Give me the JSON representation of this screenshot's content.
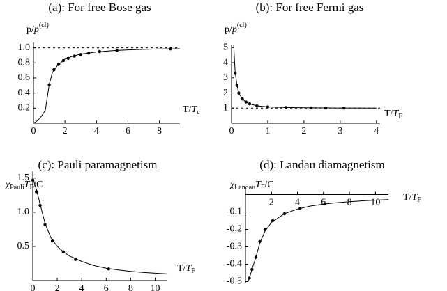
{
  "chart_data": [
    {
      "type": "line",
      "title": "(a): For free Bose gas",
      "y_label": [
        {
          "text": "p/"
        },
        {
          "text": "p",
          "style": "italic"
        },
        {
          "text": "(cl)",
          "style": "sup"
        }
      ],
      "x_label": [
        {
          "text": "T/"
        },
        {
          "text": "T",
          "style": "italic"
        },
        {
          "text": "c",
          "style": "sub"
        }
      ],
      "xlim": [
        0,
        9.3
      ],
      "ylim": [
        0,
        1.07
      ],
      "xticks": [
        0,
        2,
        4,
        6,
        8
      ],
      "yticks": [
        0.2,
        0.4,
        0.6,
        0.8,
        {
          "value": 1,
          "label": "1.0"
        }
      ],
      "ref_line": 1,
      "color": "#000000",
      "curve": {
        "x": [
          0,
          0.25,
          0.5,
          0.75,
          1,
          1.2,
          1.5,
          2,
          2.5,
          3,
          4,
          5,
          6,
          7,
          8,
          9.3
        ],
        "y": [
          0,
          0.032,
          0.09,
          0.167,
          0.514,
          0.67,
          0.76,
          0.85,
          0.89,
          0.915,
          0.945,
          0.962,
          0.972,
          0.979,
          0.984,
          0.988
        ]
      },
      "points": {
        "x": [
          1,
          1.3,
          1.6,
          1.9,
          2.2,
          2.6,
          3,
          3.5,
          4.2,
          5.3,
          8.7
        ],
        "y": [
          0.51,
          0.71,
          0.78,
          0.83,
          0.86,
          0.89,
          0.91,
          0.93,
          0.95,
          0.965,
          0.985
        ]
      }
    },
    {
      "type": "line",
      "title": "(b): For free Fermi gas",
      "y_label": [
        {
          "text": "p/"
        },
        {
          "text": "p",
          "style": "italic"
        },
        {
          "text": "(cl)",
          "style": "sup"
        }
      ],
      "x_label": [
        {
          "text": "T/"
        },
        {
          "text": "T",
          "style": "italic"
        },
        {
          "text": "F",
          "style": "sub"
        }
      ],
      "xlim": [
        0,
        4.1
      ],
      "ylim": [
        0,
        5.2
      ],
      "xticks": [
        0,
        1,
        2,
        3,
        4
      ],
      "yticks": [
        1,
        2,
        3,
        4,
        5
      ],
      "ref_line": 1,
      "color": "#000000",
      "curve": {
        "x": [
          0.06,
          0.08,
          0.1,
          0.15,
          0.2,
          0.3,
          0.4,
          0.5,
          0.7,
          1,
          1.5,
          2,
          3,
          4
        ],
        "y": [
          5.2,
          4.2,
          3.4,
          2.5,
          2.0,
          1.6,
          1.4,
          1.28,
          1.15,
          1.08,
          1.04,
          1.02,
          1.01,
          1.005
        ]
      },
      "points": {
        "x": [
          0.1,
          0.15,
          0.2,
          0.3,
          0.4,
          0.5,
          0.7,
          1,
          1.5,
          2.2,
          2.6,
          3.1
        ],
        "y": [
          3.3,
          2.5,
          2.0,
          1.6,
          1.4,
          1.28,
          1.15,
          1.08,
          1.03,
          1.015,
          1.01,
          1.005
        ]
      }
    },
    {
      "type": "line",
      "title": "(c): Pauli paramagnetism",
      "y_label": [
        {
          "text": "χ",
          "style": "italic"
        },
        {
          "text": "Pauli",
          "style": "sub"
        },
        {
          "text": "T",
          "style": "italic"
        },
        {
          "text": "F",
          "style": "sub"
        },
        {
          "text": "/C"
        }
      ],
      "x_label": [
        {
          "text": "T/"
        },
        {
          "text": "T",
          "style": "italic"
        },
        {
          "text": "F",
          "style": "sub"
        }
      ],
      "xlim": [
        0,
        11
      ],
      "ylim": [
        0,
        1.6
      ],
      "xticks": [
        0,
        2,
        4,
        6,
        8,
        10
      ],
      "yticks": [
        0.5,
        {
          "value": 1,
          "label": "1.0"
        },
        1.5
      ],
      "color": "#000000",
      "curve": {
        "x": [
          0,
          0.3,
          0.6,
          1,
          1.5,
          2,
          2.5,
          3,
          4,
          5,
          6,
          7,
          8,
          9,
          10,
          11
        ],
        "y": [
          1.5,
          1.33,
          1.12,
          0.84,
          0.62,
          0.5,
          0.42,
          0.36,
          0.28,
          0.22,
          0.18,
          0.155,
          0.135,
          0.12,
          0.108,
          0.098
        ]
      },
      "points": {
        "x": [
          0,
          0.3,
          0.6,
          1,
          1.6,
          2.5,
          3.5,
          6.2
        ],
        "y": [
          1.47,
          1.3,
          1.1,
          0.82,
          0.58,
          0.42,
          0.31,
          0.17
        ]
      }
    },
    {
      "type": "line",
      "title": "(d): Landau diamagnetism",
      "y_label": [
        {
          "text": "χ",
          "style": "italic"
        },
        {
          "text": "Landau",
          "style": "sub"
        },
        {
          "text": "T",
          "style": "italic"
        },
        {
          "text": "F",
          "style": "sub"
        },
        {
          "text": "/C"
        }
      ],
      "x_label": [
        {
          "text": "T/"
        },
        {
          "text": "T",
          "style": "italic"
        },
        {
          "text": "F",
          "style": "sub"
        }
      ],
      "xlim": [
        0,
        11
      ],
      "ylim": [
        -0.51,
        0.03
      ],
      "xticks": [
        2,
        4,
        6,
        8,
        10
      ],
      "yticks": [
        -0.5,
        -0.4,
        -0.3,
        -0.2,
        -0.1
      ],
      "color": "#000000",
      "curve": {
        "x": [
          0.2,
          0.3,
          0.5,
          0.8,
          1.1,
          1.5,
          2,
          3,
          4,
          5,
          6,
          7,
          8,
          9,
          10,
          11
        ],
        "y": [
          -0.5,
          -0.48,
          -0.43,
          -0.36,
          -0.28,
          -0.21,
          -0.16,
          -0.11,
          -0.083,
          -0.066,
          -0.055,
          -0.047,
          -0.041,
          -0.036,
          -0.032,
          -0.029
        ]
      },
      "points": {
        "x": [
          0.3,
          0.5,
          0.8,
          1.1,
          1.5,
          2.1,
          3,
          4.2,
          6.1
        ],
        "y": [
          -0.48,
          -0.43,
          -0.36,
          -0.27,
          -0.2,
          -0.15,
          -0.11,
          -0.08,
          -0.054
        ]
      }
    }
  ]
}
